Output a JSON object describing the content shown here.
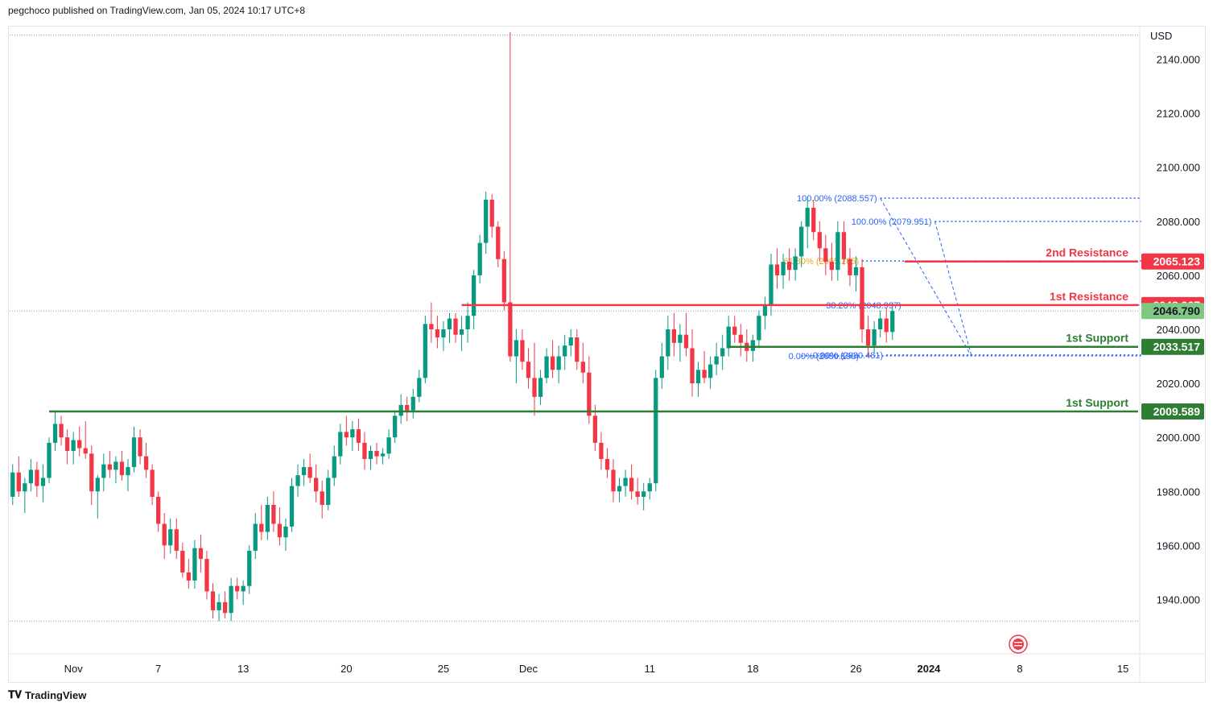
{
  "header": {
    "publisher_text": "pegchoco published on TradingView.com, Jan 05, 2024 10:17 UTC+8"
  },
  "footer": {
    "brand": "TradingView",
    "logo_icon": "tradingview-logo-icon"
  },
  "colors": {
    "up": "#089981",
    "down": "#f23645",
    "resistance": "#f23645",
    "support": "#2e7d32",
    "fib": "#2962ff",
    "fib_golden": "#e6a817",
    "last_price": "#81c784",
    "axis_text": "#131722"
  },
  "chart_data": {
    "type": "candlestick",
    "title": "",
    "currency": "USD",
    "ylim": [
      1930,
      2150
    ],
    "y_ticks": [
      1940,
      1960,
      1980,
      2000,
      2020,
      2040,
      2060,
      2080,
      2100,
      2120,
      2140
    ],
    "y_tick_labels": [
      "1940.000",
      "1960.000",
      "1980.000",
      "2000.000",
      "2020.000",
      "2040.000",
      "2060.000",
      "2080.000",
      "2100.000",
      "2120.000",
      "2140.000"
    ],
    "x_tick_labels": [
      {
        "label": "Nov",
        "bar": 10
      },
      {
        "label": "7",
        "bar": 24
      },
      {
        "label": "13",
        "bar": 38
      },
      {
        "label": "20",
        "bar": 55
      },
      {
        "label": "25",
        "bar": 71
      },
      {
        "label": "Dec",
        "bar": 85
      },
      {
        "label": "11",
        "bar": 105
      },
      {
        "label": "18",
        "bar": 122
      },
      {
        "label": "26",
        "bar": 139
      },
      {
        "label": "2024",
        "bar": 151,
        "bold": true
      },
      {
        "label": "8",
        "bar": 166
      },
      {
        "label": "15",
        "bar": 183
      }
    ],
    "bar_count_axis": 186,
    "candles": [
      {
        "o": 1978,
        "h": 1990,
        "l": 1975,
        "c": 1987
      },
      {
        "o": 1987,
        "h": 1993,
        "l": 1978,
        "c": 1980
      },
      {
        "o": 1980,
        "h": 1985,
        "l": 1972,
        "c": 1983
      },
      {
        "o": 1983,
        "h": 1992,
        "l": 1980,
        "c": 1988
      },
      {
        "o": 1988,
        "h": 1991,
        "l": 1978,
        "c": 1982
      },
      {
        "o": 1982,
        "h": 1990,
        "l": 1976,
        "c": 1985
      },
      {
        "o": 1985,
        "h": 2000,
        "l": 1983,
        "c": 1998
      },
      {
        "o": 1998,
        "h": 2010,
        "l": 1995,
        "c": 2005
      },
      {
        "o": 2005,
        "h": 2008,
        "l": 1997,
        "c": 2000
      },
      {
        "o": 2000,
        "h": 2003,
        "l": 1990,
        "c": 1995
      },
      {
        "o": 1995,
        "h": 2002,
        "l": 1990,
        "c": 1999
      },
      {
        "o": 1999,
        "h": 2004,
        "l": 1993,
        "c": 1996
      },
      {
        "o": 1996,
        "h": 2006,
        "l": 1992,
        "c": 1994
      },
      {
        "o": 1994,
        "h": 1997,
        "l": 1975,
        "c": 1980
      },
      {
        "o": 1980,
        "h": 1986,
        "l": 1970,
        "c": 1985
      },
      {
        "o": 1985,
        "h": 1994,
        "l": 1980,
        "c": 1990
      },
      {
        "o": 1990,
        "h": 1995,
        "l": 1985,
        "c": 1988
      },
      {
        "o": 1988,
        "h": 1993,
        "l": 1983,
        "c": 1991
      },
      {
        "o": 1991,
        "h": 1995,
        "l": 1984,
        "c": 1986
      },
      {
        "o": 1986,
        "h": 1992,
        "l": 1980,
        "c": 1989
      },
      {
        "o": 1989,
        "h": 2004,
        "l": 1987,
        "c": 2000
      },
      {
        "o": 2000,
        "h": 2003,
        "l": 1990,
        "c": 1993
      },
      {
        "o": 1993,
        "h": 1998,
        "l": 1985,
        "c": 1988
      },
      {
        "o": 1988,
        "h": 1990,
        "l": 1975,
        "c": 1978
      },
      {
        "o": 1978,
        "h": 1980,
        "l": 1965,
        "c": 1968
      },
      {
        "o": 1968,
        "h": 1972,
        "l": 1955,
        "c": 1960
      },
      {
        "o": 1960,
        "h": 1970,
        "l": 1957,
        "c": 1966
      },
      {
        "o": 1966,
        "h": 1970,
        "l": 1955,
        "c": 1958
      },
      {
        "o": 1958,
        "h": 1961,
        "l": 1948,
        "c": 1950
      },
      {
        "o": 1950,
        "h": 1955,
        "l": 1944,
        "c": 1947
      },
      {
        "o": 1947,
        "h": 1962,
        "l": 1944,
        "c": 1959
      },
      {
        "o": 1959,
        "h": 1964,
        "l": 1950,
        "c": 1955
      },
      {
        "o": 1955,
        "h": 1958,
        "l": 1940,
        "c": 1943
      },
      {
        "o": 1943,
        "h": 1946,
        "l": 1933,
        "c": 1936
      },
      {
        "o": 1936,
        "h": 1942,
        "l": 1932,
        "c": 1939
      },
      {
        "o": 1939,
        "h": 1943,
        "l": 1933,
        "c": 1935
      },
      {
        "o": 1935,
        "h": 1948,
        "l": 1932,
        "c": 1945
      },
      {
        "o": 1945,
        "h": 1948,
        "l": 1940,
        "c": 1943
      },
      {
        "o": 1943,
        "h": 1947,
        "l": 1938,
        "c": 1945
      },
      {
        "o": 1945,
        "h": 1960,
        "l": 1942,
        "c": 1958
      },
      {
        "o": 1958,
        "h": 1972,
        "l": 1955,
        "c": 1968
      },
      {
        "o": 1968,
        "h": 1975,
        "l": 1962,
        "c": 1965
      },
      {
        "o": 1965,
        "h": 1978,
        "l": 1962,
        "c": 1975
      },
      {
        "o": 1975,
        "h": 1980,
        "l": 1965,
        "c": 1968
      },
      {
        "o": 1968,
        "h": 1974,
        "l": 1960,
        "c": 1963
      },
      {
        "o": 1963,
        "h": 1970,
        "l": 1958,
        "c": 1967
      },
      {
        "o": 1967,
        "h": 1985,
        "l": 1965,
        "c": 1982
      },
      {
        "o": 1982,
        "h": 1990,
        "l": 1978,
        "c": 1986
      },
      {
        "o": 1986,
        "h": 1992,
        "l": 1982,
        "c": 1989
      },
      {
        "o": 1989,
        "h": 1994,
        "l": 1983,
        "c": 1985
      },
      {
        "o": 1985,
        "h": 1990,
        "l": 1976,
        "c": 1980
      },
      {
        "o": 1980,
        "h": 1984,
        "l": 1970,
        "c": 1975
      },
      {
        "o": 1975,
        "h": 1988,
        "l": 1973,
        "c": 1985
      },
      {
        "o": 1985,
        "h": 1997,
        "l": 1982,
        "c": 1993
      },
      {
        "o": 1993,
        "h": 2005,
        "l": 1990,
        "c": 2002
      },
      {
        "o": 2002,
        "h": 2008,
        "l": 1997,
        "c": 2000
      },
      {
        "o": 2000,
        "h": 2006,
        "l": 1995,
        "c": 2003
      },
      {
        "o": 2003,
        "h": 2007,
        "l": 1995,
        "c": 1998
      },
      {
        "o": 1998,
        "h": 2002,
        "l": 1988,
        "c": 1992
      },
      {
        "o": 1992,
        "h": 1997,
        "l": 1988,
        "c": 1995
      },
      {
        "o": 1995,
        "h": 1998,
        "l": 1990,
        "c": 1993
      },
      {
        "o": 1993,
        "h": 1996,
        "l": 1990,
        "c": 1994
      },
      {
        "o": 1994,
        "h": 2003,
        "l": 1992,
        "c": 2000
      },
      {
        "o": 2000,
        "h": 2010,
        "l": 1998,
        "c": 2008
      },
      {
        "o": 2008,
        "h": 2016,
        "l": 2005,
        "c": 2012
      },
      {
        "o": 2012,
        "h": 2015,
        "l": 2006,
        "c": 2010
      },
      {
        "o": 2010,
        "h": 2018,
        "l": 2007,
        "c": 2015
      },
      {
        "o": 2015,
        "h": 2025,
        "l": 2013,
        "c": 2022
      },
      {
        "o": 2022,
        "h": 2045,
        "l": 2020,
        "c": 2042
      },
      {
        "o": 2042,
        "h": 2050,
        "l": 2035,
        "c": 2040
      },
      {
        "o": 2040,
        "h": 2045,
        "l": 2033,
        "c": 2037
      },
      {
        "o": 2037,
        "h": 2043,
        "l": 2032,
        "c": 2040
      },
      {
        "o": 2040,
        "h": 2046,
        "l": 2035,
        "c": 2044
      },
      {
        "o": 2044,
        "h": 2046,
        "l": 2035,
        "c": 2038
      },
      {
        "o": 2038,
        "h": 2045,
        "l": 2032,
        "c": 2040
      },
      {
        "o": 2040,
        "h": 2050,
        "l": 2035,
        "c": 2045
      },
      {
        "o": 2045,
        "h": 2062,
        "l": 2040,
        "c": 2060
      },
      {
        "o": 2060,
        "h": 2075,
        "l": 2057,
        "c": 2072
      },
      {
        "o": 2072,
        "h": 2091,
        "l": 2068,
        "c": 2088
      },
      {
        "o": 2088,
        "h": 2090,
        "l": 2074,
        "c": 2078
      },
      {
        "o": 2078,
        "h": 2080,
        "l": 2063,
        "c": 2066
      },
      {
        "o": 2066,
        "h": 2069,
        "l": 2047,
        "c": 2050
      },
      {
        "o": 2050,
        "h": 2150,
        "l": 2028,
        "c": 2030
      },
      {
        "o": 2030,
        "h": 2040,
        "l": 2020,
        "c": 2036
      },
      {
        "o": 2036,
        "h": 2040,
        "l": 2025,
        "c": 2028
      },
      {
        "o": 2028,
        "h": 2033,
        "l": 2018,
        "c": 2022
      },
      {
        "o": 2022,
        "h": 2035,
        "l": 2008,
        "c": 2015
      },
      {
        "o": 2015,
        "h": 2025,
        "l": 2012,
        "c": 2022
      },
      {
        "o": 2022,
        "h": 2033,
        "l": 2020,
        "c": 2030
      },
      {
        "o": 2030,
        "h": 2036,
        "l": 2022,
        "c": 2025
      },
      {
        "o": 2025,
        "h": 2034,
        "l": 2020,
        "c": 2030
      },
      {
        "o": 2030,
        "h": 2038,
        "l": 2025,
        "c": 2034
      },
      {
        "o": 2034,
        "h": 2040,
        "l": 2030,
        "c": 2037
      },
      {
        "o": 2037,
        "h": 2040,
        "l": 2025,
        "c": 2028
      },
      {
        "o": 2028,
        "h": 2035,
        "l": 2020,
        "c": 2024
      },
      {
        "o": 2024,
        "h": 2030,
        "l": 2005,
        "c": 2008
      },
      {
        "o": 2008,
        "h": 2012,
        "l": 1995,
        "c": 1998
      },
      {
        "o": 1998,
        "h": 2002,
        "l": 1988,
        "c": 1992
      },
      {
        "o": 1992,
        "h": 1996,
        "l": 1985,
        "c": 1988
      },
      {
        "o": 1988,
        "h": 1992,
        "l": 1976,
        "c": 1980
      },
      {
        "o": 1980,
        "h": 1985,
        "l": 1976,
        "c": 1982
      },
      {
        "o": 1982,
        "h": 1988,
        "l": 1978,
        "c": 1985
      },
      {
        "o": 1985,
        "h": 1990,
        "l": 1977,
        "c": 1980
      },
      {
        "o": 1980,
        "h": 1985,
        "l": 1975,
        "c": 1978
      },
      {
        "o": 1978,
        "h": 1983,
        "l": 1973,
        "c": 1980
      },
      {
        "o": 1980,
        "h": 1985,
        "l": 1977,
        "c": 1983
      },
      {
        "o": 1983,
        "h": 2025,
        "l": 1980,
        "c": 2022
      },
      {
        "o": 2022,
        "h": 2035,
        "l": 2018,
        "c": 2030
      },
      {
        "o": 2030,
        "h": 2045,
        "l": 2025,
        "c": 2040
      },
      {
        "o": 2040,
        "h": 2046,
        "l": 2030,
        "c": 2035
      },
      {
        "o": 2035,
        "h": 2042,
        "l": 2028,
        "c": 2038
      },
      {
        "o": 2038,
        "h": 2046,
        "l": 2030,
        "c": 2033
      },
      {
        "o": 2033,
        "h": 2040,
        "l": 2015,
        "c": 2020
      },
      {
        "o": 2020,
        "h": 2028,
        "l": 2015,
        "c": 2025
      },
      {
        "o": 2025,
        "h": 2032,
        "l": 2020,
        "c": 2022
      },
      {
        "o": 2022,
        "h": 2030,
        "l": 2018,
        "c": 2027
      },
      {
        "o": 2027,
        "h": 2035,
        "l": 2023,
        "c": 2030
      },
      {
        "o": 2030,
        "h": 2038,
        "l": 2025,
        "c": 2033
      },
      {
        "o": 2033,
        "h": 2045,
        "l": 2030,
        "c": 2041
      },
      {
        "o": 2041,
        "h": 2045,
        "l": 2035,
        "c": 2038
      },
      {
        "o": 2038,
        "h": 2042,
        "l": 2030,
        "c": 2035
      },
      {
        "o": 2035,
        "h": 2040,
        "l": 2028,
        "c": 2032
      },
      {
        "o": 2032,
        "h": 2038,
        "l": 2028,
        "c": 2036
      },
      {
        "o": 2036,
        "h": 2047,
        "l": 2033,
        "c": 2045
      },
      {
        "o": 2045,
        "h": 2052,
        "l": 2040,
        "c": 2049
      },
      {
        "o": 2049,
        "h": 2068,
        "l": 2045,
        "c": 2064
      },
      {
        "o": 2064,
        "h": 2070,
        "l": 2055,
        "c": 2060
      },
      {
        "o": 2060,
        "h": 2068,
        "l": 2055,
        "c": 2065
      },
      {
        "o": 2065,
        "h": 2070,
        "l": 2058,
        "c": 2062
      },
      {
        "o": 2062,
        "h": 2070,
        "l": 2058,
        "c": 2067
      },
      {
        "o": 2067,
        "h": 2080,
        "l": 2063,
        "c": 2078
      },
      {
        "o": 2078,
        "h": 2089,
        "l": 2070,
        "c": 2085
      },
      {
        "o": 2085,
        "h": 2088,
        "l": 2073,
        "c": 2076
      },
      {
        "o": 2076,
        "h": 2080,
        "l": 2065,
        "c": 2070
      },
      {
        "o": 2070,
        "h": 2075,
        "l": 2060,
        "c": 2065
      },
      {
        "o": 2065,
        "h": 2072,
        "l": 2058,
        "c": 2062
      },
      {
        "o": 2062,
        "h": 2080,
        "l": 2058,
        "c": 2076
      },
      {
        "o": 2076,
        "h": 2080,
        "l": 2064,
        "c": 2066
      },
      {
        "o": 2066,
        "h": 2070,
        "l": 2056,
        "c": 2060
      },
      {
        "o": 2060,
        "h": 2067,
        "l": 2054,
        "c": 2063
      },
      {
        "o": 2063,
        "h": 2066,
        "l": 2035,
        "c": 2040
      },
      {
        "o": 2040,
        "h": 2045,
        "l": 2030,
        "c": 2034
      },
      {
        "o": 2034,
        "h": 2043,
        "l": 2031,
        "c": 2040
      },
      {
        "o": 2040,
        "h": 2047,
        "l": 2037,
        "c": 2044
      },
      {
        "o": 2044,
        "h": 2048,
        "l": 2035,
        "c": 2039
      },
      {
        "o": 2039,
        "h": 2050,
        "l": 2036,
        "c": 2046.79
      }
    ],
    "horizontal_levels": [
      {
        "label": "1st Resistance",
        "value": 2048.967,
        "price_label": "2048.967",
        "kind": "resistance",
        "from_bar": 74
      },
      {
        "label": "2nd Resistance",
        "value": 2065.123,
        "price_label": "2065.123",
        "kind": "resistance",
        "from_bar": 147
      },
      {
        "label": "1st Support",
        "value": 2033.517,
        "price_label": "2033.517",
        "kind": "support",
        "from_bar": 118
      },
      {
        "label": "1st Support",
        "value": 2009.589,
        "price_label": "2009.589",
        "kind": "support",
        "from_bar": 6
      }
    ],
    "last_price": {
      "value": 2046.79,
      "label": "2046.790"
    },
    "fib_levels": [
      {
        "text": "100.00% (2088.557)",
        "value": 2088.557,
        "from_bar": 143,
        "to_bar": 186,
        "label_bar": 143
      },
      {
        "text": "100.00% (2079.951)",
        "value": 2079.951,
        "from_bar": 152,
        "to_bar": 186,
        "label_bar": 152
      },
      {
        "text": "61.80% (2065.285)",
        "value": 2065.285,
        "from_bar": 140,
        "to_bar": 186,
        "label_bar": 140,
        "golden": true
      },
      {
        "text": "38.20% (2048.997)",
        "value": 2048.997,
        "from_bar": 139,
        "to_bar": 186,
        "label_bar": 147
      },
      {
        "text": "0.00% (2030.190)",
        "value": 2030.19,
        "from_bar": 130,
        "to_bar": 186,
        "label_bar": 140
      },
      {
        "text": "0.00% (2030.481)",
        "value": 2030.481,
        "from_bar": 144,
        "to_bar": 186,
        "label_bar": 144
      }
    ],
    "fib_trendlines": [
      {
        "from": [
          143,
          2088.557
        ],
        "to": [
          158,
          2030.19
        ]
      },
      {
        "from": [
          152,
          2079.951
        ],
        "to": [
          158,
          2030.481
        ]
      }
    ],
    "grid": false,
    "legend": "none"
  }
}
